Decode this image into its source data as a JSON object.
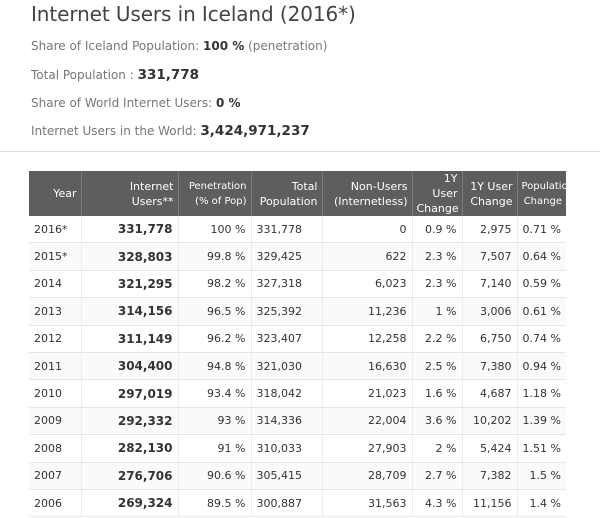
{
  "header": {
    "title": "Internet Users in Iceland (2016*)",
    "share_pop_label": "Share of Iceland Population:",
    "share_pop_value": "100 %",
    "share_pop_suffix": "(penetration)",
    "total_pop_label": "Total Population :",
    "total_pop_value": "331,778",
    "share_world_label": "Share of World Internet Users:",
    "share_world_value": "0 %",
    "world_users_label": "Internet Users in the World:",
    "world_users_value": "3,424,971,237"
  },
  "table": {
    "columns": [
      "Year",
      "Internet Users**",
      "Penetration (% of Pop)",
      "Total Population",
      "Non-Users (Internetless)",
      "1Y User Change",
      "1Y User Change",
      "Population Change"
    ],
    "rows": [
      [
        "2016*",
        "331,778",
        "100 %",
        "331,778",
        "0",
        "0.9 %",
        "2,975",
        "0.71 %"
      ],
      [
        "2015*",
        "328,803",
        "99.8 %",
        "329,425",
        "622",
        "2.3 %",
        "7,507",
        "0.64 %"
      ],
      [
        "2014",
        "321,295",
        "98.2 %",
        "327,318",
        "6,023",
        "2.3 %",
        "7,140",
        "0.59 %"
      ],
      [
        "2013",
        "314,156",
        "96.5 %",
        "325,392",
        "11,236",
        "1 %",
        "3,006",
        "0.61 %"
      ],
      [
        "2012",
        "311,149",
        "96.2 %",
        "323,407",
        "12,258",
        "2.2 %",
        "6,750",
        "0.74 %"
      ],
      [
        "2011",
        "304,400",
        "94.8 %",
        "321,030",
        "16,630",
        "2.5 %",
        "7,380",
        "0.94 %"
      ],
      [
        "2010",
        "297,019",
        "93.4 %",
        "318,042",
        "21,023",
        "1.6 %",
        "4,687",
        "1.18 %"
      ],
      [
        "2009",
        "292,332",
        "93 %",
        "314,336",
        "22,004",
        "3.6 %",
        "10,202",
        "1.39 %"
      ],
      [
        "2008",
        "282,130",
        "91 %",
        "310,033",
        "27,903",
        "2 %",
        "5,424",
        "1.51 %"
      ],
      [
        "2007",
        "276,706",
        "90.6 %",
        "305,415",
        "28,709",
        "2.7 %",
        "7,382",
        "1.5 %"
      ],
      [
        "2006",
        "269,324",
        "89.5 %",
        "300,887",
        "31,563",
        "4.3 %",
        "11,156",
        "1.4 %"
      ]
    ]
  }
}
